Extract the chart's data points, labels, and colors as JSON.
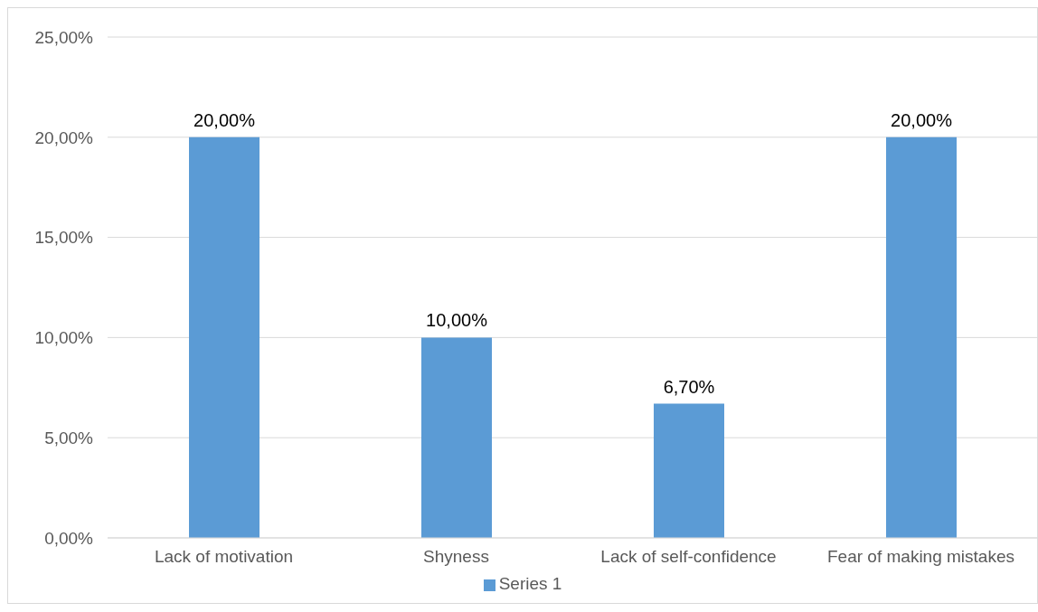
{
  "chart_data": {
    "type": "bar",
    "categories": [
      "Lack of motivation",
      "Shyness",
      "Lack of self-confidence",
      "Fear of making mistakes"
    ],
    "series": [
      {
        "name": "Series 1",
        "color": "#5b9bd5",
        "values": [
          20,
          10,
          6.7,
          20
        ],
        "value_labels": [
          "20,00%",
          "10,00%",
          "6,70%",
          "20,00%"
        ]
      }
    ],
    "ylim": [
      0,
      25
    ],
    "yticks": [
      {
        "value": 0,
        "label": "0,00%"
      },
      {
        "value": 5,
        "label": "5,00%"
      },
      {
        "value": 10,
        "label": "10,00%"
      },
      {
        "value": 15,
        "label": "15,00%"
      },
      {
        "value": 20,
        "label": "20,00%"
      },
      {
        "value": 25,
        "label": "25,00%"
      }
    ],
    "grid": "y",
    "legend": "bottom"
  }
}
